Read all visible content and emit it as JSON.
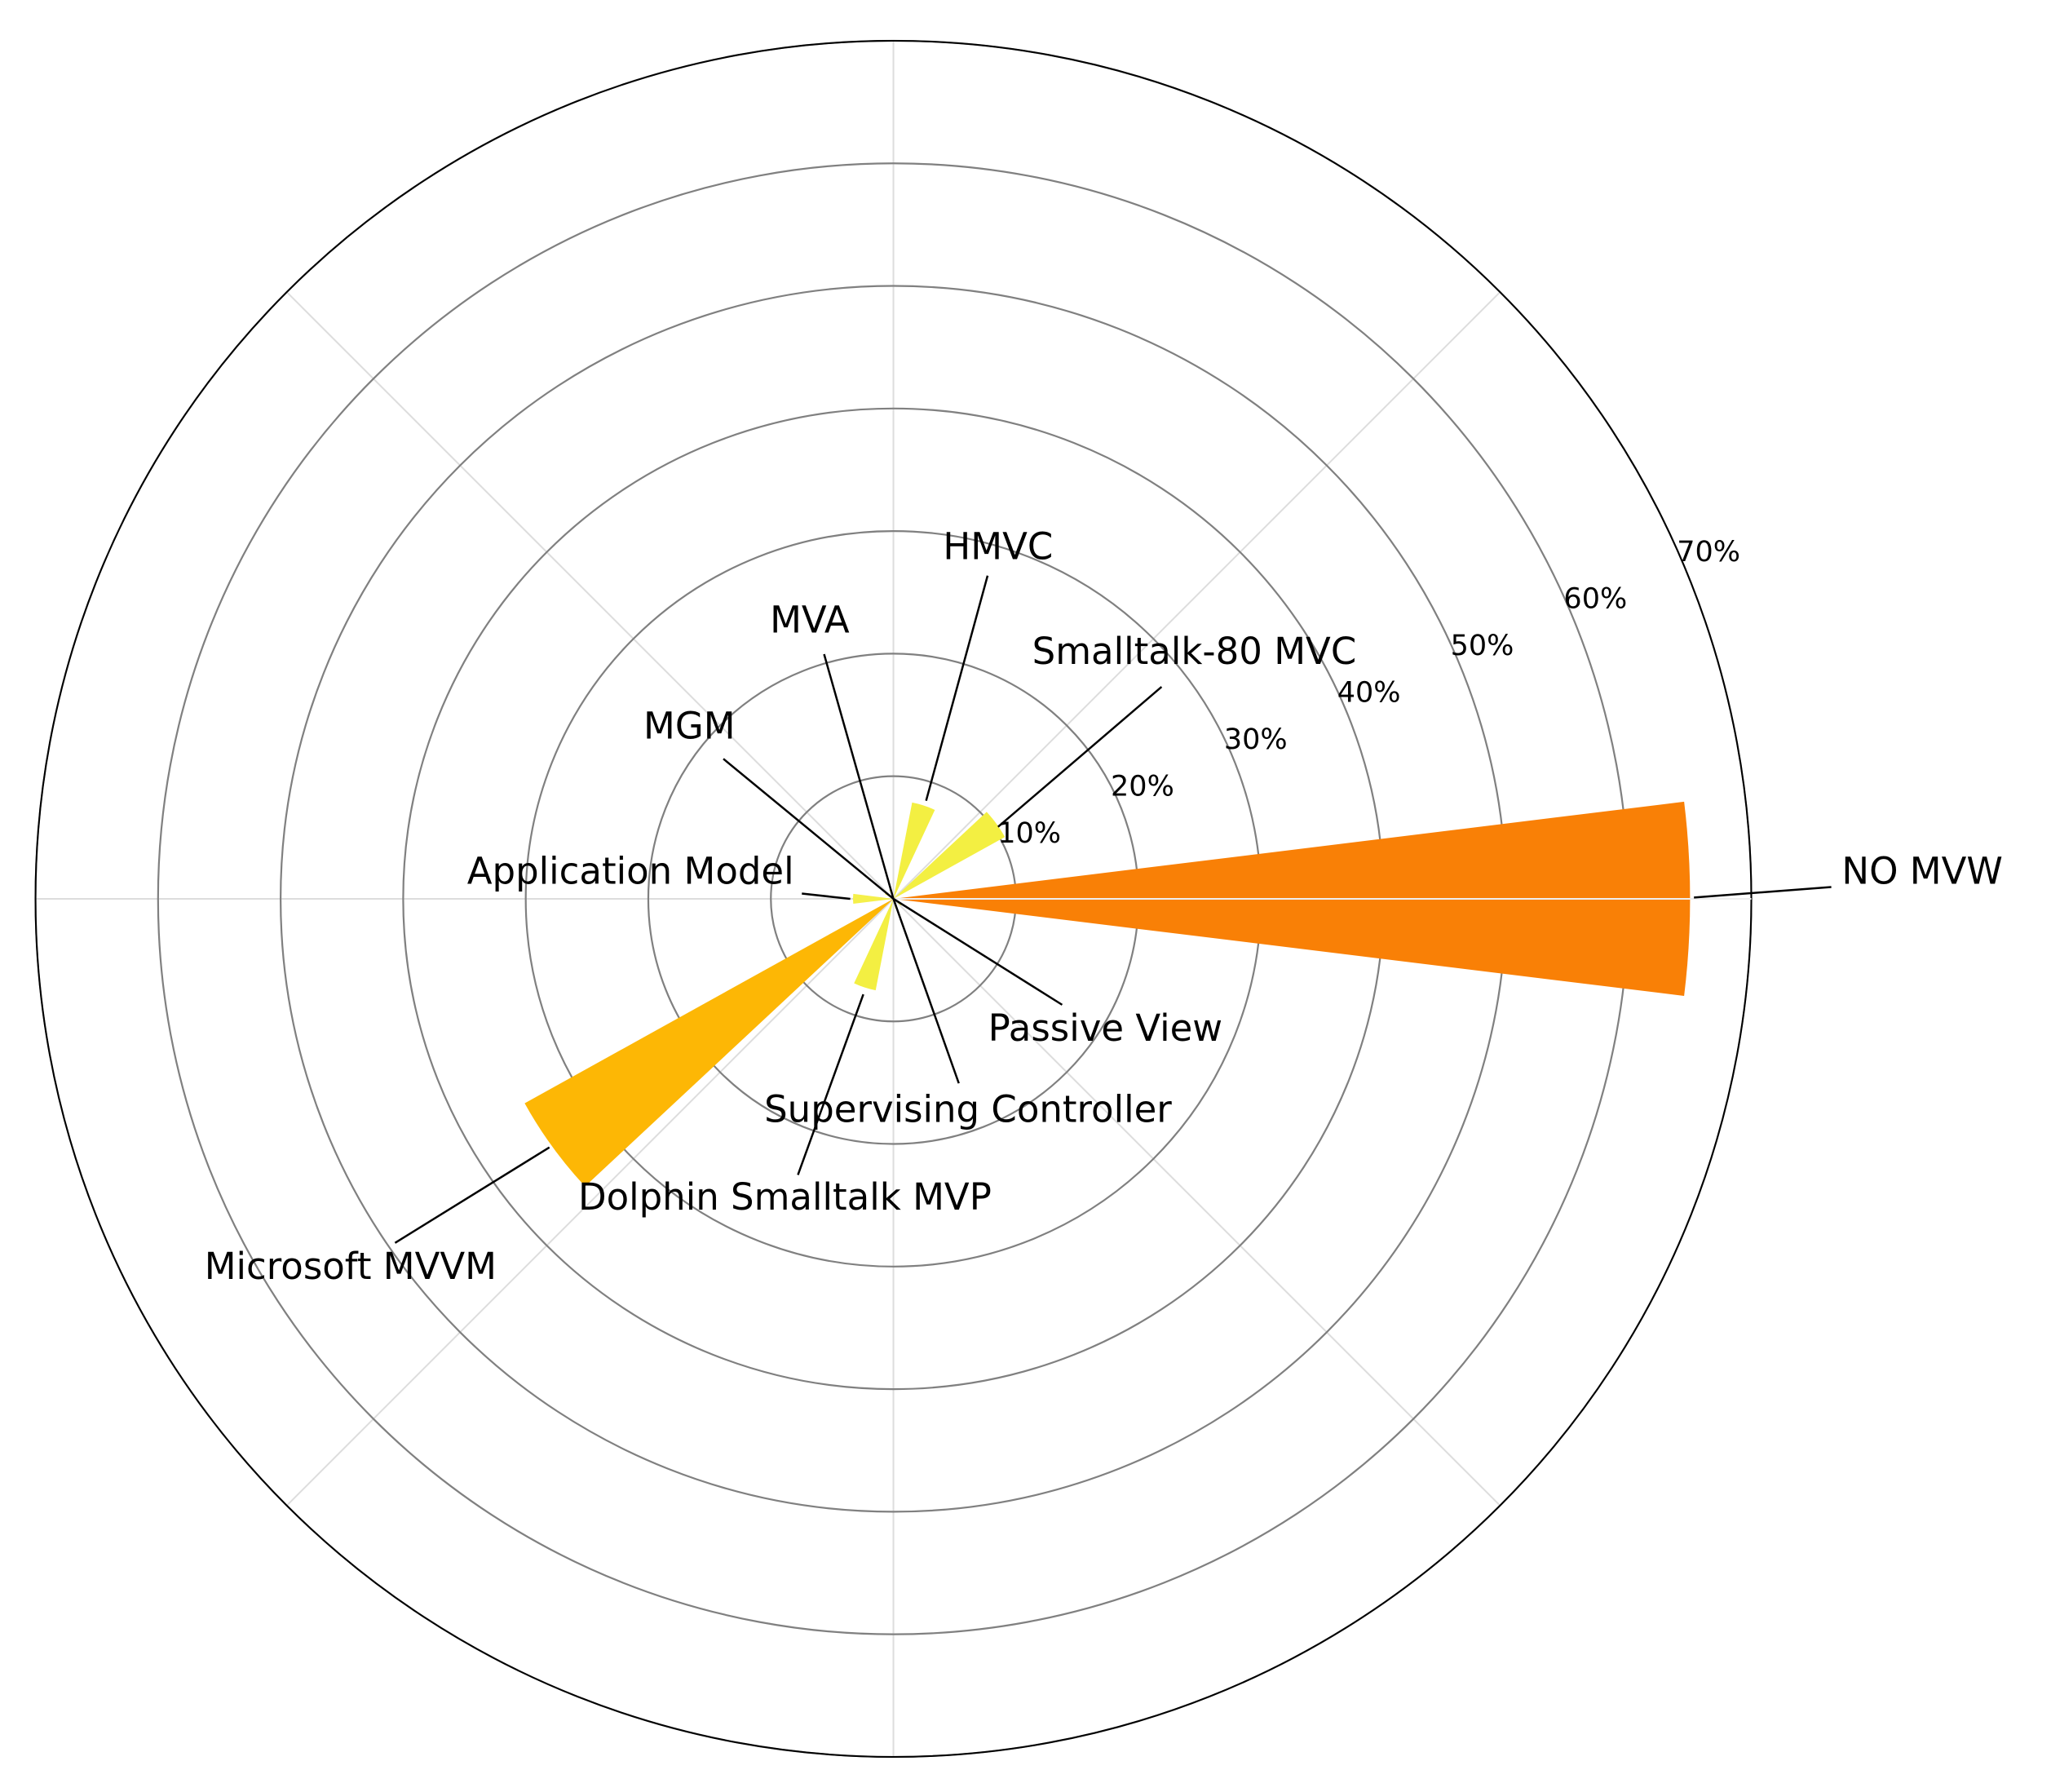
{
  "chart_data": {
    "type": "polar-bar",
    "categories": [
      "NO MVW",
      "Smalltalk-80 MVC",
      "HMVC",
      "MVA",
      "MGM",
      "Application Model",
      "Microsoft MVVM",
      "Dolphin Smalltalk MVP",
      "Supervising Controller",
      "Passive View"
    ],
    "values": [
      65,
      10.4,
      8,
      0.8,
      0.8,
      3.3,
      34.4,
      7.6,
      0.8,
      0.8
    ],
    "colors": [
      "#f98006",
      "#f3ef42",
      "#f3ef42",
      "#f3ef42",
      "#f3ef42",
      "#f5f04a",
      "#fdb705",
      "#f3ef42",
      "#f3ef42",
      "#f3ef42"
    ],
    "ylim": [
      0,
      70
    ],
    "yticks": [
      {
        "value": 10,
        "label": "10%"
      },
      {
        "value": 20,
        "label": "20%"
      },
      {
        "value": 30,
        "label": "30%"
      },
      {
        "value": 40,
        "label": "40%"
      },
      {
        "value": 50,
        "label": "50%"
      },
      {
        "value": 60,
        "label": "60%"
      },
      {
        "value": 70,
        "label": "70%"
      }
    ],
    "grid": true
  }
}
